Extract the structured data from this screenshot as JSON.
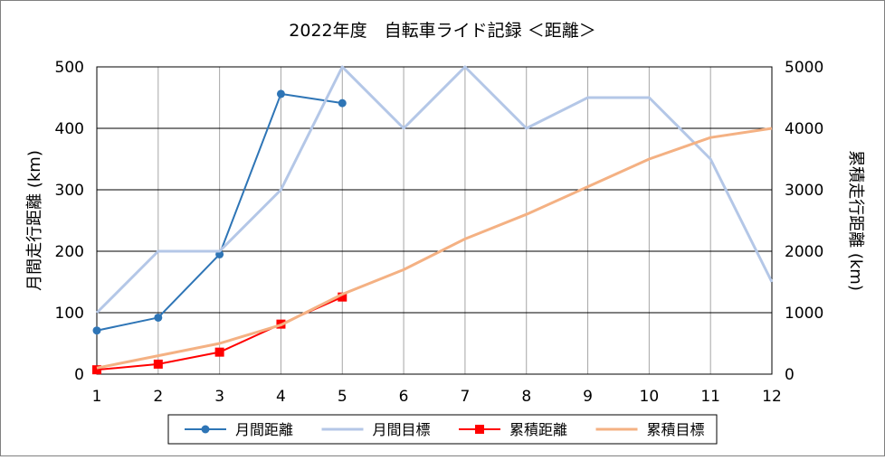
{
  "chart_data": {
    "type": "line",
    "title": "2022年度　自転車ライド記録 ＜距離＞",
    "x": [
      1,
      2,
      3,
      4,
      5,
      6,
      7,
      8,
      9,
      10,
      11,
      12
    ],
    "xlim": [
      1,
      12
    ],
    "ylabel_left": "月間走行距離 (km)",
    "ylabel_right": "累積走行距離 (km)",
    "ylim_left": [
      0,
      500
    ],
    "ylim_right": [
      0,
      5000
    ],
    "yticks_left": [
      0,
      100,
      200,
      300,
      400,
      500
    ],
    "yticks_right": [
      0,
      1000,
      2000,
      3000,
      4000,
      5000
    ],
    "grid": true,
    "legend": "bottom",
    "series": [
      {
        "name": "月間距離",
        "axis": "left",
        "color": "#2e75b6",
        "marker": "circle",
        "x": [
          1,
          2,
          3,
          4,
          5
        ],
        "values": [
          71,
          92,
          195,
          456,
          441
        ]
      },
      {
        "name": "月間目標",
        "axis": "left",
        "color": "#b4c7e7",
        "marker": "none",
        "x": [
          1,
          2,
          3,
          4,
          5,
          6,
          7,
          8,
          9,
          10,
          11,
          12
        ],
        "values": [
          100,
          200,
          200,
          300,
          500,
          400,
          500,
          400,
          450,
          450,
          350,
          150
        ]
      },
      {
        "name": "累積距離",
        "axis": "right",
        "color": "#ff0000",
        "marker": "square",
        "x": [
          1,
          2,
          3,
          4,
          5
        ],
        "values": [
          71,
          163,
          358,
          814,
          1255
        ]
      },
      {
        "name": "累積目標",
        "axis": "right",
        "color": "#f4b183",
        "marker": "none",
        "x": [
          1,
          2,
          3,
          4,
          5,
          6,
          7,
          8,
          9,
          10,
          11,
          12
        ],
        "values": [
          100,
          300,
          500,
          800,
          1300,
          1700,
          2200,
          2600,
          3050,
          3500,
          3850,
          4000
        ]
      }
    ]
  }
}
